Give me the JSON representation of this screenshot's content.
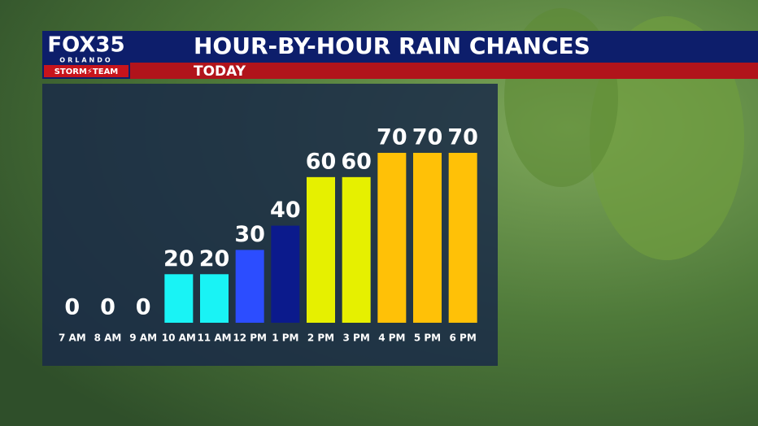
{
  "logo": {
    "brand": "FOX35",
    "city": "ORLANDO",
    "team": "STORM⚡TEAM"
  },
  "chart_data": {
    "type": "bar",
    "title": "HOUR-BY-HOUR RAIN CHANCES",
    "subtitle": "TODAY",
    "categories": [
      "7 AM",
      "8 AM",
      "9 AM",
      "10 AM",
      "11 AM",
      "12 PM",
      "1 PM",
      "2 PM",
      "3 PM",
      "4 PM",
      "5 PM",
      "6 PM"
    ],
    "values": [
      0,
      0,
      0,
      20,
      20,
      30,
      40,
      60,
      60,
      70,
      70,
      70
    ],
    "colors": [
      null,
      null,
      null,
      "#19f3f5",
      "#19f3f5",
      "#2c4dff",
      "#0b1a8c",
      "#e6f000",
      "#e6f000",
      "#ffc107",
      "#ffc107",
      "#ffc107"
    ]
  }
}
